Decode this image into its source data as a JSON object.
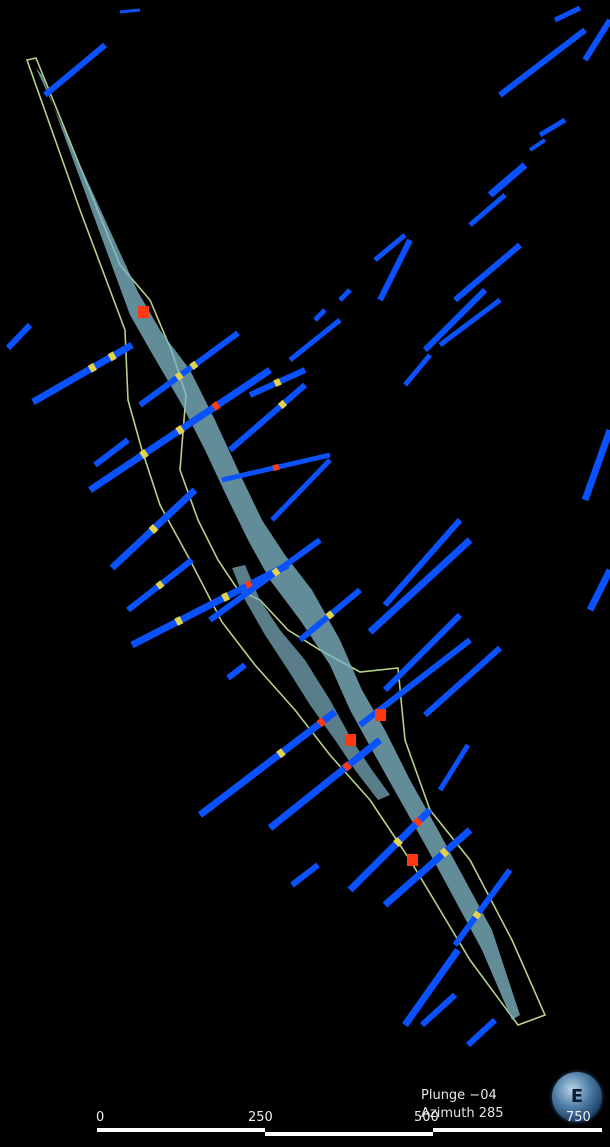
{
  "view": {
    "plunge_label": "Plunge −04",
    "azimuth_label": "Azimuth 285",
    "compass_letter": "E"
  },
  "scale_bar": {
    "ticks": [
      "0",
      "250",
      "500",
      "750"
    ]
  },
  "colors": {
    "background": "#000000",
    "drillhole_low": "#0a52ff",
    "drillhole_mid": "#e3d34a",
    "drillhole_high": "#ff3a10",
    "orebody_solid": "#7fb3c4",
    "boundary_outline": "#b8d08a"
  },
  "icons": {
    "compass": "compass-globe-icon"
  }
}
